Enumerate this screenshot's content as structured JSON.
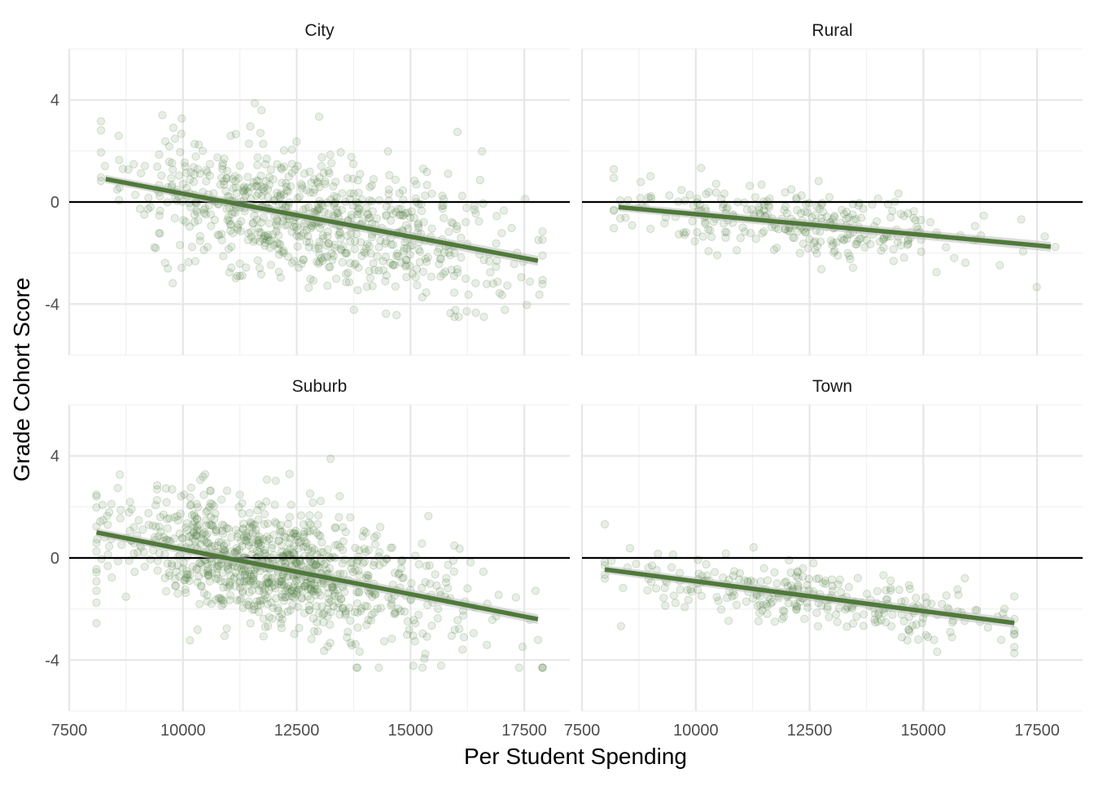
{
  "chart_data": {
    "type": "scatter",
    "layout": "facet-2x2",
    "title": "",
    "xlabel": "Per Student Spending",
    "ylabel": "Grade Cohort Score",
    "xlim": [
      7500,
      18500
    ],
    "ylim": [
      -6,
      6
    ],
    "x_ticks": [
      7500,
      10000,
      12500,
      15000,
      17500
    ],
    "x_tick_labels": [
      "7500",
      "10000",
      "12500",
      "15000",
      "17500"
    ],
    "y_ticks": [
      -4,
      0,
      4
    ],
    "y_tick_labels": [
      "-4",
      "0",
      "4"
    ],
    "reference_line_y": 0,
    "grid": true,
    "point_color": "#4f7a3a",
    "line_color": "#4f7a3a",
    "ribbon_color": "#bdbdbd",
    "reference_color": "#000000",
    "panels": [
      {
        "name": "City",
        "x_range": [
          8200,
          17900
        ],
        "fit": {
          "x": [
            8300,
            17800
          ],
          "y": [
            0.9,
            -2.3
          ]
        },
        "clouds": [
          {
            "n": 650,
            "cx": 12300,
            "sx": 1800,
            "cy": -0.4,
            "sy": 1.5,
            "xmin": 8200,
            "xmax": 17900,
            "ymin": -4.5,
            "ymax": 4.5,
            "seed": 11
          },
          {
            "n": 130,
            "cx": 15400,
            "sx": 1300,
            "cy": -1.2,
            "sy": 1.4,
            "xmin": 13000,
            "xmax": 17900,
            "ymin": -4.5,
            "ymax": 4.5,
            "seed": 12
          }
        ]
      },
      {
        "name": "Rural",
        "x_range": [
          8200,
          17900
        ],
        "fit": {
          "x": [
            8300,
            17800
          ],
          "y": [
            -0.2,
            -1.75
          ]
        },
        "clouds": [
          {
            "n": 300,
            "cx": 12300,
            "sx": 2100,
            "cy": -0.75,
            "sy": 0.8,
            "xmin": 8200,
            "xmax": 17900,
            "ymin": -4.0,
            "ymax": 4.3,
            "seed": 21
          }
        ]
      },
      {
        "name": "Suburb",
        "x_range": [
          8100,
          17900
        ],
        "fit": {
          "x": [
            8100,
            17800
          ],
          "y": [
            1.0,
            -2.4
          ]
        },
        "clouds": [
          {
            "n": 900,
            "cx": 11800,
            "sx": 1600,
            "cy": -0.3,
            "sy": 1.4,
            "xmin": 8100,
            "xmax": 17900,
            "ymin": -4.3,
            "ymax": 5.3,
            "seed": 31
          },
          {
            "n": 90,
            "cx": 15300,
            "sx": 1400,
            "cy": -0.9,
            "sy": 1.6,
            "xmin": 12500,
            "xmax": 17900,
            "ymin": -4.3,
            "ymax": 4.5,
            "seed": 32
          }
        ]
      },
      {
        "name": "Town",
        "x_range": [
          8000,
          17000
        ],
        "fit": {
          "x": [
            8000,
            17000
          ],
          "y": [
            -0.45,
            -2.55
          ]
        },
        "clouds": [
          {
            "n": 300,
            "cx": 12600,
            "sx": 2100,
            "cy": -1.5,
            "sy": 0.75,
            "xmin": 8000,
            "xmax": 17000,
            "ymin": -4.1,
            "ymax": 1.5,
            "seed": 41
          }
        ]
      }
    ]
  }
}
